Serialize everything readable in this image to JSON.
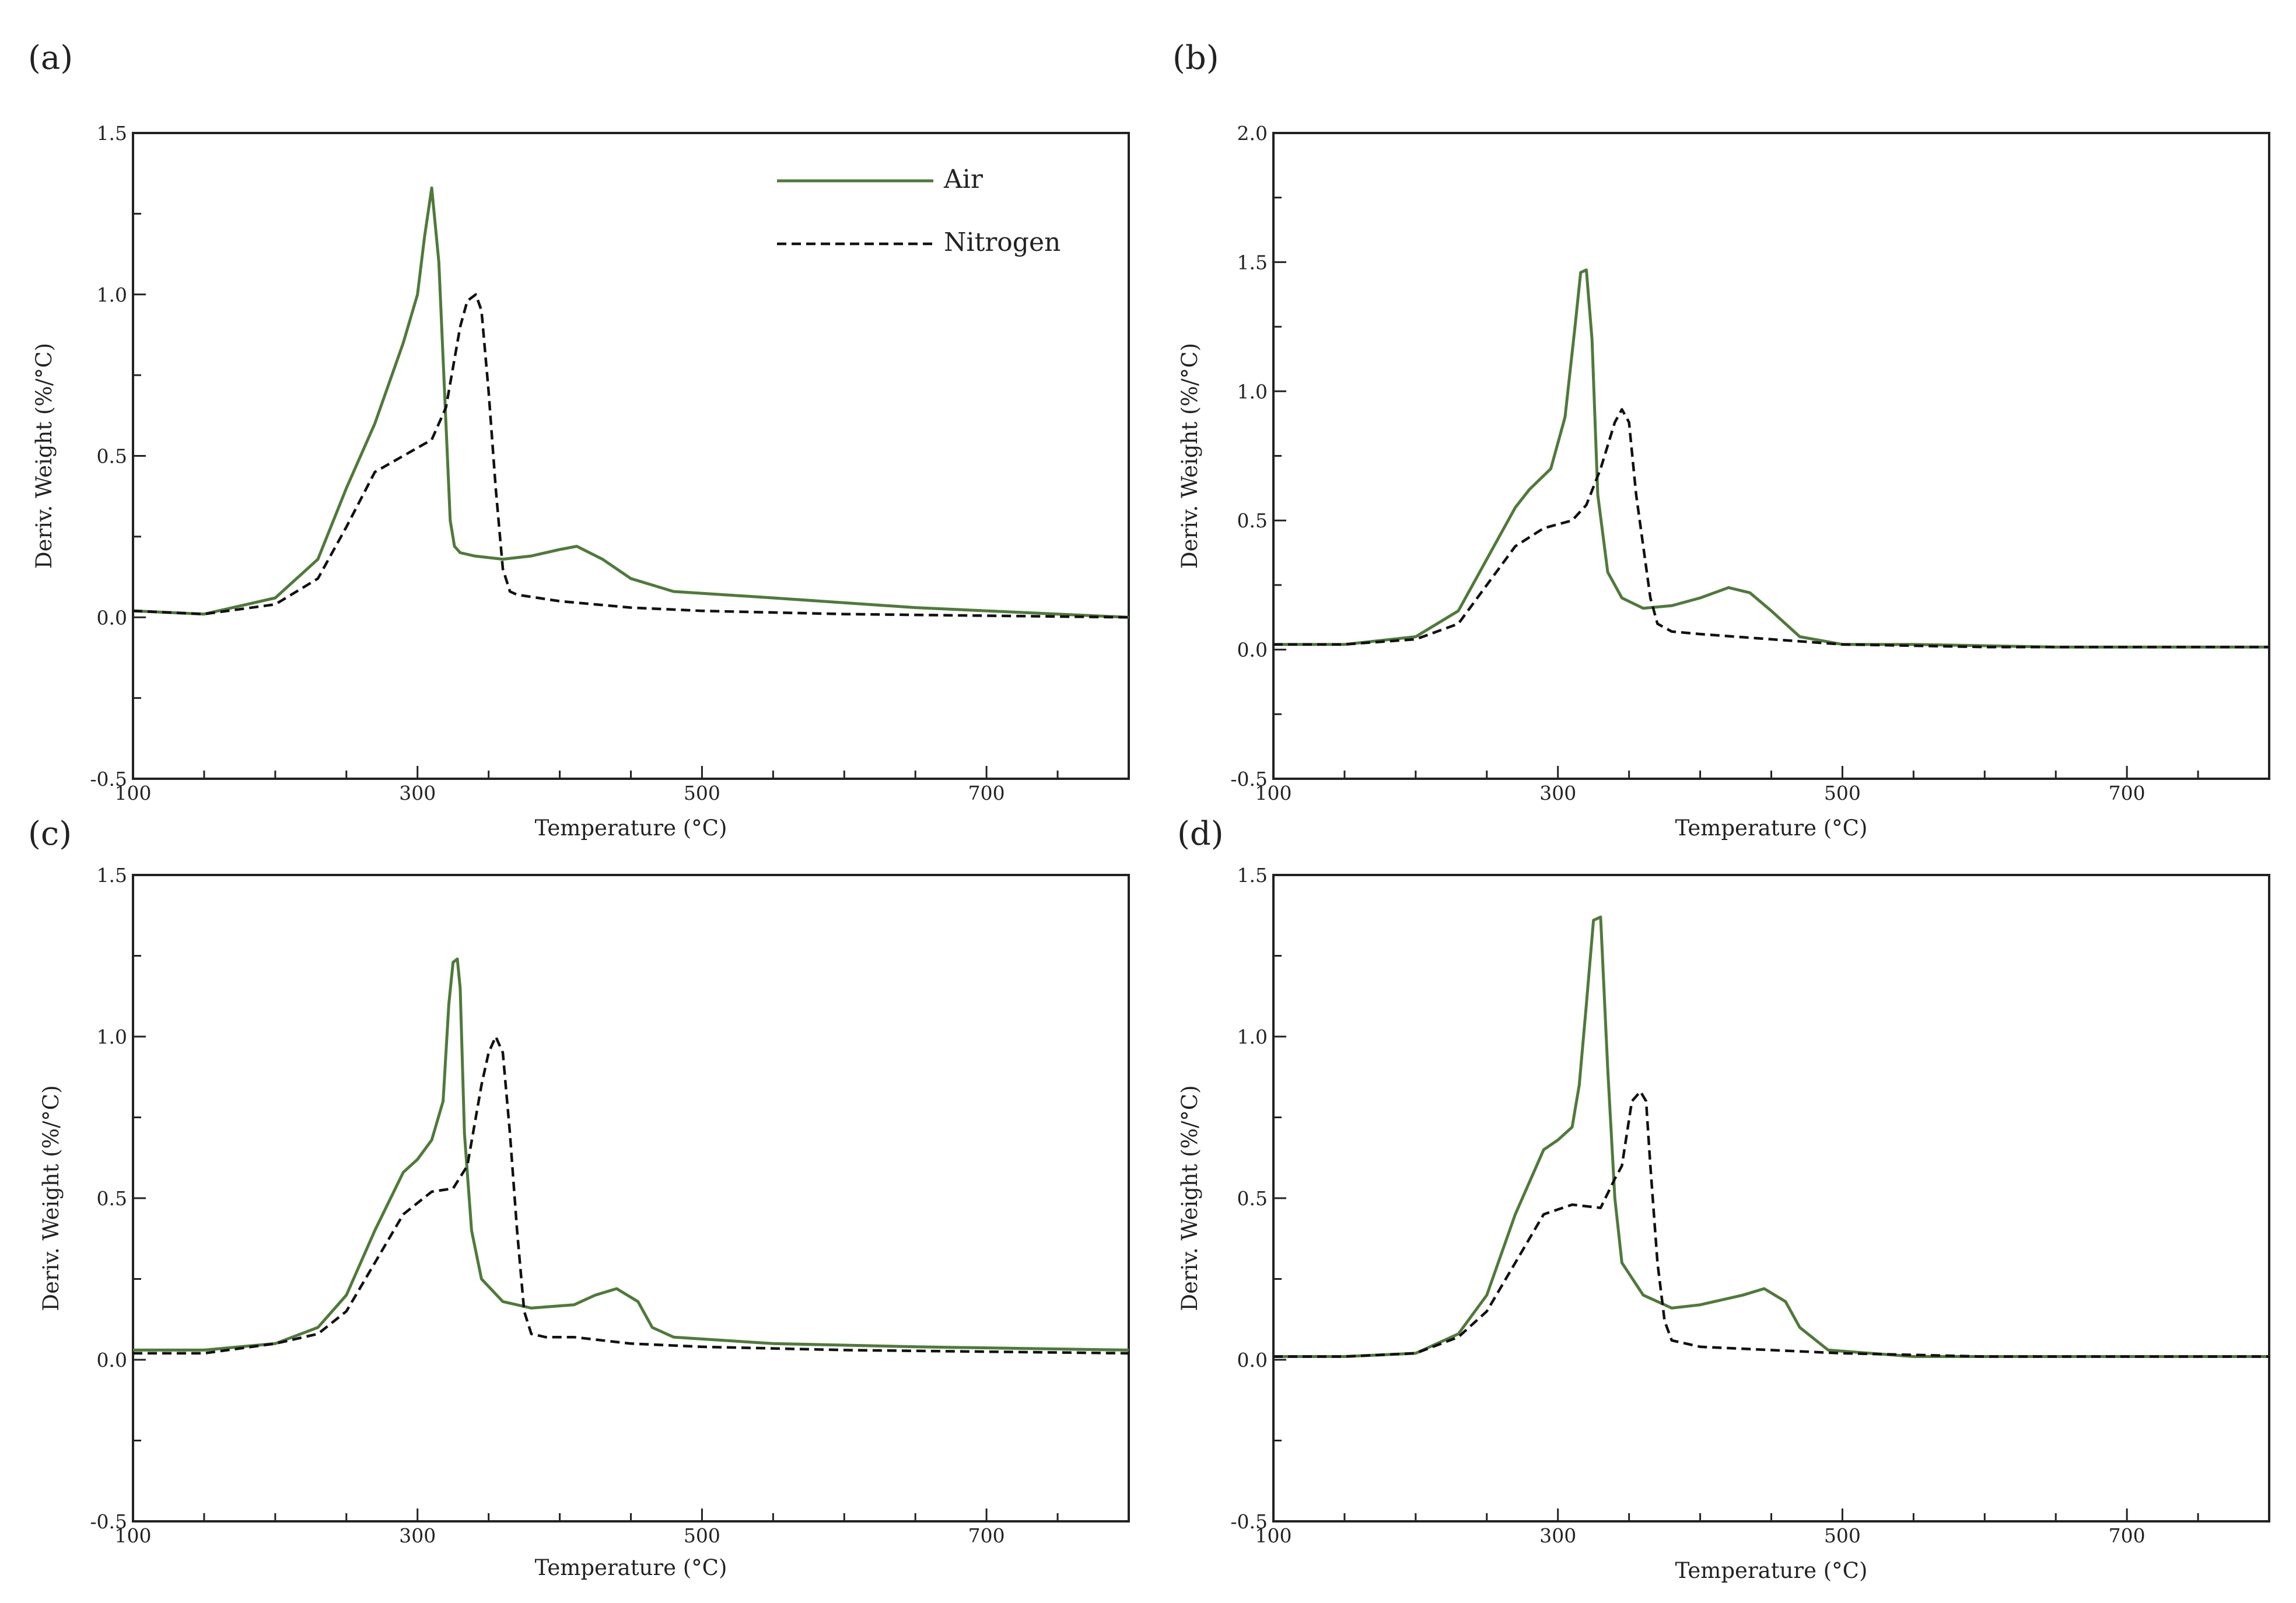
{
  "legend": {
    "air": "Air",
    "nitrogen": "Nitrogen",
    "air_color": "#4f7a3a",
    "nitrogen_color": "#111111"
  },
  "chart_data": [
    {
      "panel": "(a)",
      "type": "line",
      "xlabel": "Temperature (°C)",
      "ylabel": "Deriv. Weight (%/°C)",
      "xlim": [
        100,
        800
      ],
      "ylim": [
        -0.5,
        1.5
      ],
      "xticks": [
        100,
        300,
        500,
        700
      ],
      "xtick_labels": [
        "100",
        "300",
        "500",
        "700"
      ],
      "yticks": [
        -0.5,
        0.0,
        0.5,
        1.0,
        1.5
      ],
      "ytick_labels": [
        "-0.5",
        "0.0",
        "0.5",
        "1.0",
        "1.5"
      ],
      "legend_visible": true,
      "legend_position": "top-right",
      "series": [
        {
          "name": "Air",
          "style": "solid",
          "x": [
            100,
            150,
            200,
            230,
            250,
            270,
            290,
            300,
            305,
            310,
            315,
            320,
            323,
            326,
            330,
            340,
            360,
            380,
            400,
            412,
            430,
            450,
            480,
            550,
            650,
            800
          ],
          "y": [
            0.02,
            0.01,
            0.06,
            0.18,
            0.4,
            0.6,
            0.85,
            1.0,
            1.18,
            1.33,
            1.1,
            0.6,
            0.3,
            0.22,
            0.2,
            0.19,
            0.18,
            0.19,
            0.21,
            0.22,
            0.18,
            0.12,
            0.08,
            0.06,
            0.03,
            0.0
          ]
        },
        {
          "name": "Nitrogen",
          "style": "dashed",
          "x": [
            100,
            150,
            200,
            230,
            250,
            270,
            290,
            310,
            320,
            330,
            335,
            341,
            345,
            350,
            355,
            360,
            365,
            370,
            400,
            450,
            500,
            600,
            800
          ],
          "y": [
            0.02,
            0.01,
            0.04,
            0.12,
            0.28,
            0.45,
            0.5,
            0.55,
            0.65,
            0.9,
            0.98,
            1.0,
            0.95,
            0.7,
            0.4,
            0.15,
            0.08,
            0.07,
            0.05,
            0.03,
            0.02,
            0.01,
            0.0
          ]
        }
      ]
    },
    {
      "panel": "(b)",
      "type": "line",
      "xlabel": "Temperature (°C)",
      "ylabel": "Deriv. Weight (%/°C)",
      "xlim": [
        100,
        800
      ],
      "ylim": [
        -0.5,
        2.0
      ],
      "xticks": [
        100,
        300,
        500,
        700
      ],
      "xtick_labels": [
        "100",
        "300",
        "500",
        "700"
      ],
      "yticks": [
        -0.5,
        0.0,
        0.5,
        1.0,
        1.5,
        2.0
      ],
      "ytick_labels": [
        "-0.5",
        "0.0",
        "0.5",
        "1.0",
        "1.5",
        "2.0"
      ],
      "legend_visible": false,
      "series": [
        {
          "name": "Air",
          "style": "solid",
          "x": [
            100,
            150,
            200,
            230,
            250,
            270,
            280,
            295,
            305,
            312,
            316,
            320,
            324,
            328,
            335,
            345,
            360,
            380,
            400,
            420,
            435,
            450,
            470,
            500,
            550,
            650,
            800
          ],
          "y": [
            0.02,
            0.02,
            0.05,
            0.15,
            0.35,
            0.55,
            0.62,
            0.7,
            0.9,
            1.25,
            1.46,
            1.47,
            1.2,
            0.6,
            0.3,
            0.2,
            0.16,
            0.17,
            0.2,
            0.24,
            0.22,
            0.15,
            0.05,
            0.02,
            0.02,
            0.01,
            0.01
          ]
        },
        {
          "name": "Nitrogen",
          "style": "dashed",
          "x": [
            100,
            150,
            200,
            230,
            250,
            270,
            290,
            310,
            320,
            330,
            340,
            345,
            350,
            355,
            360,
            365,
            370,
            380,
            400,
            450,
            500,
            600,
            800
          ],
          "y": [
            0.02,
            0.02,
            0.04,
            0.1,
            0.25,
            0.4,
            0.47,
            0.5,
            0.56,
            0.7,
            0.88,
            0.93,
            0.88,
            0.6,
            0.4,
            0.2,
            0.1,
            0.07,
            0.06,
            0.04,
            0.02,
            0.01,
            0.01
          ]
        }
      ]
    },
    {
      "panel": "(c)",
      "type": "line",
      "xlabel": "Temperature (°C)",
      "ylabel": "Deriv. Weight (%/°C)",
      "xlim": [
        100,
        800
      ],
      "ylim": [
        -0.5,
        1.5
      ],
      "xticks": [
        100,
        300,
        500,
        700
      ],
      "xtick_labels": [
        "100",
        "300",
        "500",
        "700"
      ],
      "yticks": [
        -0.5,
        0.0,
        0.5,
        1.0,
        1.5
      ],
      "ytick_labels": [
        "-0.5",
        "0.0",
        "0.5",
        "1.0",
        "1.5"
      ],
      "legend_visible": false,
      "series": [
        {
          "name": "Air",
          "style": "solid",
          "x": [
            100,
            150,
            200,
            230,
            250,
            270,
            290,
            300,
            310,
            318,
            322,
            325,
            328,
            330,
            333,
            338,
            345,
            360,
            380,
            410,
            425,
            440,
            455,
            465,
            480,
            550,
            650,
            800
          ],
          "y": [
            0.03,
            0.03,
            0.05,
            0.1,
            0.2,
            0.4,
            0.58,
            0.62,
            0.68,
            0.8,
            1.1,
            1.23,
            1.24,
            1.15,
            0.7,
            0.4,
            0.25,
            0.18,
            0.16,
            0.17,
            0.2,
            0.22,
            0.18,
            0.1,
            0.07,
            0.05,
            0.04,
            0.03
          ]
        },
        {
          "name": "Nitrogen",
          "style": "dashed",
          "x": [
            100,
            150,
            200,
            230,
            250,
            270,
            290,
            310,
            325,
            335,
            345,
            350,
            355,
            360,
            365,
            370,
            375,
            380,
            390,
            410,
            430,
            450,
            500,
            600,
            800
          ],
          "y": [
            0.02,
            0.02,
            0.05,
            0.08,
            0.15,
            0.3,
            0.45,
            0.52,
            0.53,
            0.6,
            0.85,
            0.95,
            1.0,
            0.95,
            0.7,
            0.4,
            0.15,
            0.08,
            0.07,
            0.07,
            0.06,
            0.05,
            0.04,
            0.03,
            0.02
          ]
        }
      ]
    },
    {
      "panel": "(d)",
      "type": "line",
      "xlabel": "Temperature (°C)",
      "ylabel": "Deriv. Weight (%/°C)",
      "xlim": [
        100,
        800
      ],
      "ylim": [
        -0.5,
        1.5
      ],
      "xticks": [
        100,
        300,
        500,
        700
      ],
      "xtick_labels": [
        "100",
        "300",
        "500",
        "700"
      ],
      "yticks": [
        -0.5,
        0.0,
        0.5,
        1.0,
        1.5
      ],
      "ytick_labels": [
        "-0.5",
        "0.0",
        "0.5",
        "1.0",
        "1.5"
      ],
      "legend_visible": false,
      "series": [
        {
          "name": "Air",
          "style": "solid",
          "x": [
            100,
            150,
            200,
            230,
            250,
            270,
            290,
            300,
            310,
            315,
            320,
            325,
            330,
            335,
            340,
            345,
            360,
            380,
            400,
            430,
            445,
            460,
            470,
            490,
            550,
            650,
            800
          ],
          "y": [
            0.01,
            0.01,
            0.02,
            0.08,
            0.2,
            0.45,
            0.65,
            0.68,
            0.72,
            0.85,
            1.1,
            1.36,
            1.37,
            0.9,
            0.5,
            0.3,
            0.2,
            0.16,
            0.17,
            0.2,
            0.22,
            0.18,
            0.1,
            0.03,
            0.01,
            0.01,
            0.01
          ]
        },
        {
          "name": "Nitrogen",
          "style": "dashed",
          "x": [
            100,
            150,
            200,
            230,
            250,
            270,
            290,
            310,
            330,
            340,
            345,
            352,
            358,
            362,
            365,
            370,
            375,
            380,
            400,
            450,
            500,
            600,
            800
          ],
          "y": [
            0.01,
            0.01,
            0.02,
            0.07,
            0.15,
            0.3,
            0.45,
            0.48,
            0.47,
            0.56,
            0.6,
            0.8,
            0.83,
            0.8,
            0.6,
            0.3,
            0.12,
            0.06,
            0.04,
            0.03,
            0.02,
            0.01,
            0.01
          ]
        }
      ]
    }
  ]
}
